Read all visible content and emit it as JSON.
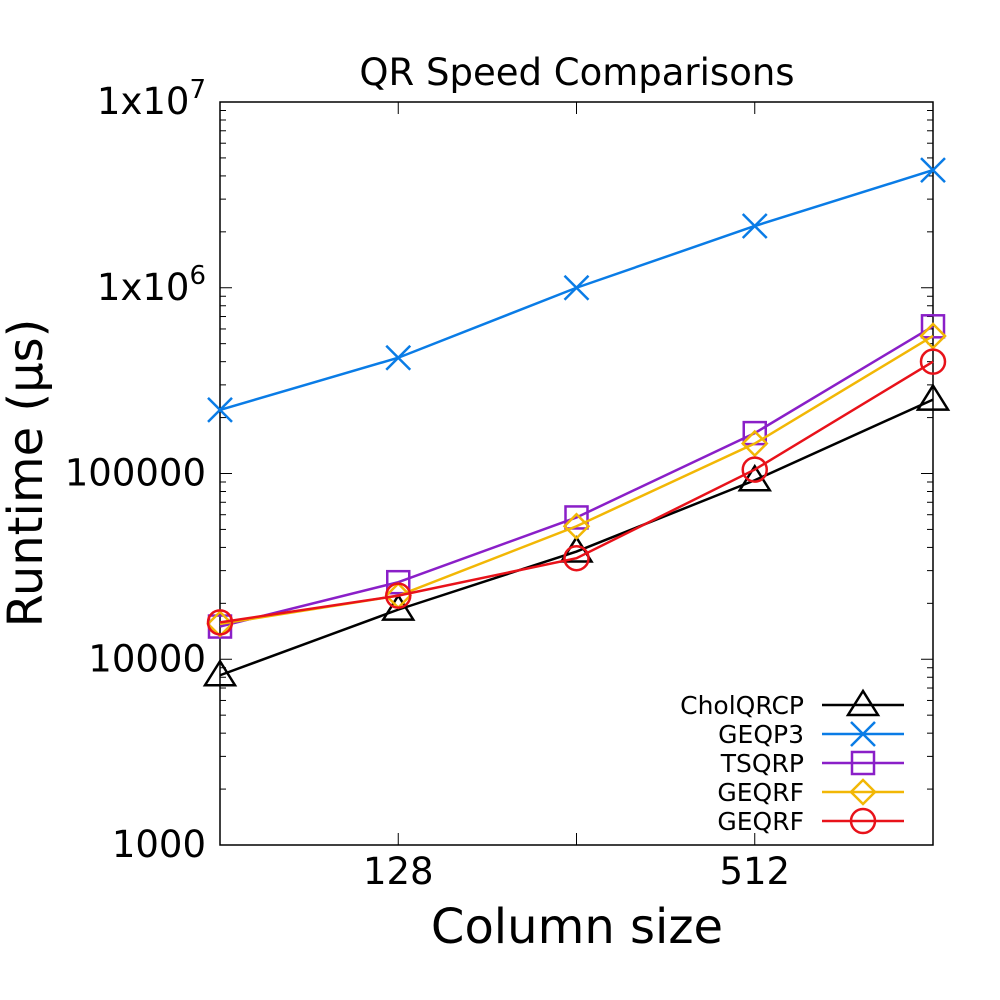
{
  "chart_data": {
    "type": "line",
    "title": "QR Speed Comparisons",
    "xlabel": "Column size",
    "ylabel": "Runtime (µs)",
    "x_scale": "log2",
    "y_scale": "log10",
    "x": [
      64,
      128,
      256,
      512,
      1024
    ],
    "xlim": [
      64,
      1024
    ],
    "ylim": [
      1000,
      10000000
    ],
    "x_ticks": [
      {
        "value": 128,
        "label": "128"
      },
      {
        "value": 512,
        "label": "512"
      }
    ],
    "y_ticks": [
      {
        "value": 1000,
        "label": "1000"
      },
      {
        "value": 10000,
        "label": "10000"
      },
      {
        "value": 100000,
        "label": "100000"
      },
      {
        "value": 1000000,
        "label": "1x10",
        "exp": "6"
      },
      {
        "value": 10000000,
        "label": "1x10",
        "exp": "7"
      }
    ],
    "grid": false,
    "legend_position": "bottom-right",
    "series": [
      {
        "name": "CholQRCP",
        "color": "#000000",
        "marker": "triangle",
        "values": [
          8200,
          18500,
          38000,
          92000,
          250000
        ]
      },
      {
        "name": "GEQP3",
        "color": "#0a7ce6",
        "marker": "x",
        "values": [
          220000,
          420000,
          1000000,
          2150000,
          4300000
        ]
      },
      {
        "name": "TSQRP",
        "color": "#8a1fc8",
        "marker": "square",
        "values": [
          15000,
          26000,
          58000,
          165000,
          620000
        ]
      },
      {
        "name": "GEQRF",
        "color": "#f2b705",
        "marker": "diamond",
        "values": [
          15500,
          22000,
          52000,
          145000,
          550000
        ]
      },
      {
        "name": "GEQRF",
        "color": "#e8121a",
        "marker": "circle",
        "values": [
          15800,
          22000,
          35000,
          105000,
          400000
        ]
      }
    ]
  }
}
